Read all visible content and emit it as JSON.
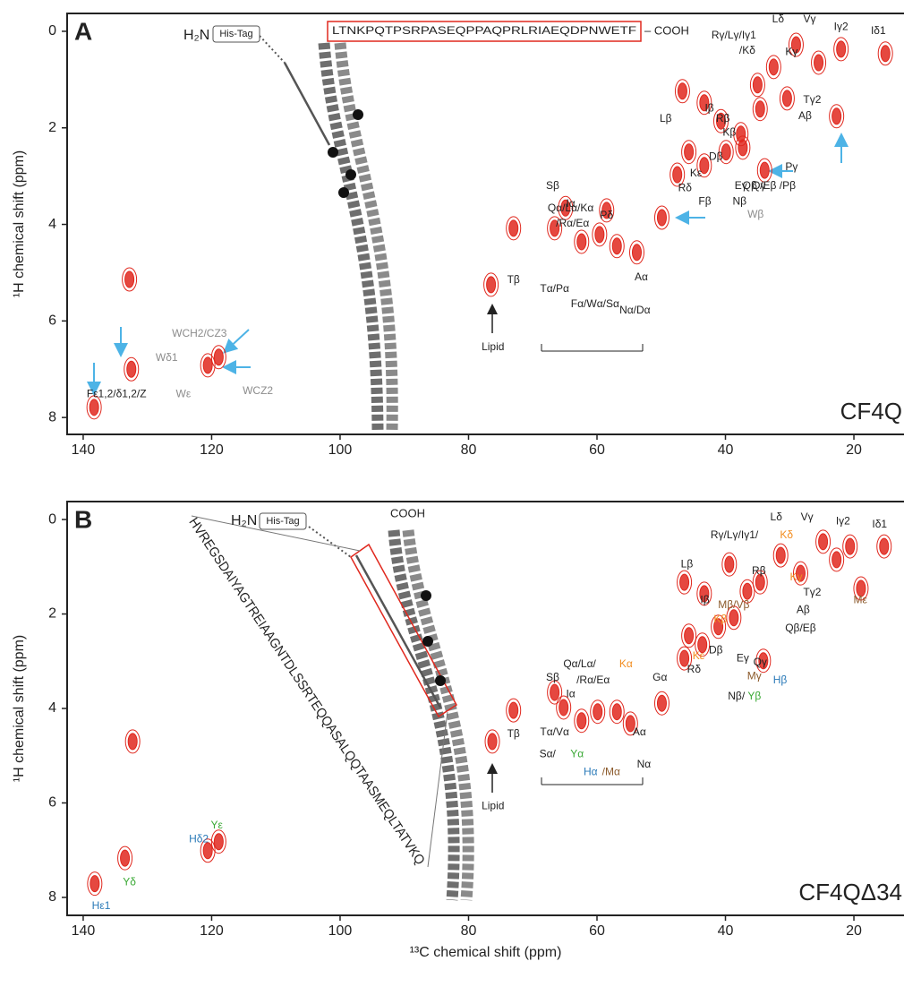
{
  "chart_data": [
    {
      "type": "scatter",
      "panel": "A",
      "construct": "CF4Q",
      "ylabel": "¹H chemical shift (ppm)",
      "xlim": [
        142.5,
        12.2
      ],
      "ylim": [
        -0.37,
        8.35
      ],
      "xticks": [
        140,
        120,
        100,
        80,
        60,
        40,
        20
      ],
      "yticks": [
        0,
        2,
        4,
        6,
        8
      ],
      "structure": {
        "n_term": "H₂N",
        "tag": "His-Tag",
        "sequence": "LTNKPQTPSRPASEQPPAQPRLRIAEQDPNWETF",
        "c_term": "– COOH"
      },
      "series": [
        {
          "color": "#e0281e",
          "x": [
            132.8,
            132.5,
            138.3,
            120.6,
            118.9,
            76.5,
            73.0,
            49.9,
            46.7,
            43.3,
            45.7,
            47.5,
            43.3,
            39.9,
            37.6,
            34.6,
            33.9,
            22.7,
            15.1,
            22.0,
            29.0,
            32.5,
            25.5,
            35.0,
            66.6,
            64.9,
            62.4,
            59.6,
            56.9,
            53.8,
            58.5,
            30.4,
            40.7,
            37.3
          ],
          "values": [
            5.14,
            7.0,
            7.79,
            6.92,
            6.75,
            5.25,
            4.08,
            3.86,
            1.24,
            1.48,
            2.5,
            2.97,
            2.78,
            2.5,
            2.13,
            1.61,
            2.88,
            1.76,
            0.46,
            0.37,
            0.28,
            0.74,
            0.65,
            1.11,
            4.08,
            3.66,
            4.36,
            4.21,
            4.45,
            4.58,
            3.71,
            1.39,
            1.86,
            2.41
          ]
        }
      ],
      "annotations": [
        {
          "text": "Lδ",
          "x": 31.8,
          "y": -0.24
        },
        {
          "text": "Vγ",
          "x": 26.9,
          "y": -0.24
        },
        {
          "text": "Iγ2",
          "x": 22.0,
          "y": -0.09
        },
        {
          "text": "Iδ1",
          "x": 16.2,
          "y": 0.0
        },
        {
          "text": "Rγ/Lγ/Iγ1",
          "x": 38.7,
          "y": 0.09
        },
        {
          "text": "/Kδ",
          "x": 36.6,
          "y": 0.41
        },
        {
          "text": "Kγ",
          "x": 29.7,
          "y": 0.43
        },
        {
          "text": "Lβ",
          "x": 49.3,
          "y": 1.82
        },
        {
          "text": "Iβ",
          "x": 42.5,
          "y": 1.6
        },
        {
          "text": "Rβ",
          "x": 40.4,
          "y": 1.82
        },
        {
          "text": "Kβ",
          "x": 39.4,
          "y": 2.1
        },
        {
          "text": "Tγ2",
          "x": 26.5,
          "y": 1.43
        },
        {
          "text": "Aβ",
          "x": 27.6,
          "y": 1.76
        },
        {
          "text": "Dβ",
          "x": 41.5,
          "y": 2.6
        },
        {
          "text": "Kε",
          "x": 44.6,
          "y": 2.95
        },
        {
          "text": "Rδ",
          "x": 46.3,
          "y": 3.25
        },
        {
          "text": "Eγ",
          "x": 37.6,
          "y": 3.21
        },
        {
          "text": "Qγ",
          "x": 34.8,
          "y": 3.21
        },
        {
          "text": "Fβ",
          "x": 43.2,
          "y": 3.53
        },
        {
          "text": "Nβ",
          "x": 37.8,
          "y": 3.53
        },
        {
          "text": "Pγ",
          "x": 29.7,
          "y": 2.82
        },
        {
          "text": "Qβ /Eβ /Pβ",
          "x": 33.2,
          "y": 3.21
        },
        {
          "text": "Wβ",
          "x": 35.3,
          "y": 3.8,
          "color": "#8c8c8c"
        },
        {
          "text": "Pδ",
          "x": 58.5,
          "y": 3.82
        },
        {
          "text": "Qα/Lα/Kα",
          "x": 64.1,
          "y": 3.67
        },
        {
          "text": "/Rα/Eα",
          "x": 63.8,
          "y": 3.99
        },
        {
          "text": "Sβ",
          "x": 66.9,
          "y": 3.21
        },
        {
          "text": "Iα",
          "x": 64.1,
          "y": 3.58
        },
        {
          "text": "Aα",
          "x": 53.1,
          "y": 5.1
        },
        {
          "text": "Tα/Pα",
          "x": 66.6,
          "y": 5.34
        },
        {
          "text": "Fα/Wα/Sα",
          "x": 60.3,
          "y": 5.66
        },
        {
          "text": "Nα/Dα",
          "x": 54.1,
          "y": 5.79
        },
        {
          "text": "Tβ",
          "x": 73.0,
          "y": 5.16
        },
        {
          "text": "Lipid",
          "x": 76.2,
          "y": 6.55
        },
        {
          "text": "WCH2/CZ3",
          "x": 121.9,
          "y": 6.27,
          "color": "#8c8c8c"
        },
        {
          "text": "Wδ1",
          "x": 127.0,
          "y": 6.77,
          "color": "#8c8c8c"
        },
        {
          "text": "Wε",
          "x": 124.4,
          "y": 7.52,
          "color": "#8c8c8c"
        },
        {
          "text": "WCZ2",
          "x": 112.8,
          "y": 7.46,
          "color": "#8c8c8c"
        },
        {
          "text": "Fε1,2/δ1,2/Z",
          "x": 134.8,
          "y": 7.52
        }
      ]
    },
    {
      "type": "scatter",
      "panel": "B",
      "construct": "CF4QΔ34",
      "xlabel": "¹³C chemical shift (ppm)",
      "ylabel": "¹H chemical shift (ppm)",
      "xlim": [
        142.5,
        12.2
      ],
      "ylim": [
        -0.38,
        8.38
      ],
      "xticks": [
        140,
        120,
        100,
        80,
        60,
        40,
        20
      ],
      "yticks": [
        0,
        2,
        4,
        6,
        8
      ],
      "structure": {
        "n_term": "H₂N",
        "tag": "His-Tag",
        "sequence": "HVREGSDAIYAGTREIAAGNTDLSSRTEQQASALQQTAASMEQLTATVKQ",
        "c_term": "COOH"
      },
      "series": [
        {
          "color": "#e0281e",
          "x": [
            138.2,
            133.5,
            132.3,
            120.6,
            118.9,
            76.3,
            73.0,
            66.6,
            65.2,
            62.4,
            59.9,
            56.9,
            54.8,
            49.9,
            46.4,
            45.7,
            46.4,
            43.3,
            39.4,
            43.6,
            41.1,
            38.7,
            36.6,
            34.6,
            34.1,
            31.4,
            28.3,
            24.8,
            22.7,
            20.6,
            18.9,
            15.3
          ],
          "values": [
            7.71,
            7.17,
            4.7,
            7.01,
            6.82,
            4.7,
            4.04,
            3.66,
            3.98,
            4.26,
            4.07,
            4.07,
            4.32,
            3.89,
            2.94,
            2.46,
            1.33,
            1.57,
            0.95,
            2.65,
            2.27,
            2.08,
            1.52,
            1.33,
            2.99,
            0.76,
            1.14,
            0.47,
            0.85,
            0.57,
            1.46,
            0.57
          ]
        }
      ],
      "annotations": [
        {
          "text": "Lδ",
          "x": 32.1,
          "y": -0.04
        },
        {
          "text": "Vγ",
          "x": 27.3,
          "y": -0.04
        },
        {
          "text": "Iγ2",
          "x": 21.7,
          "y": 0.04
        },
        {
          "text": "Iδ1",
          "x": 16.0,
          "y": 0.11
        },
        {
          "text": "Rγ/Lγ/Iγ1/",
          "x": 38.6,
          "y": 0.34
        },
        {
          "text": "Kδ",
          "x": 30.5,
          "y": 0.34,
          "color": "#f28c1e"
        },
        {
          "text": "Lβ",
          "x": 46.0,
          "y": 0.95
        },
        {
          "text": "Iβ",
          "x": 43.2,
          "y": 1.71
        },
        {
          "text": "Mβ/Vβ",
          "x": 38.7,
          "y": 1.82,
          "color": "#8b5a2b"
        },
        {
          "text": "Kβ",
          "x": 40.8,
          "y": 2.12,
          "color": "#f28c1e"
        },
        {
          "text": "Rβ",
          "x": 34.8,
          "y": 1.1
        },
        {
          "text": "Kγ",
          "x": 29.0,
          "y": 1.23,
          "color": "#f28c1e"
        },
        {
          "text": "Tγ2",
          "x": 26.5,
          "y": 1.55
        },
        {
          "text": "Aβ",
          "x": 27.9,
          "y": 1.92
        },
        {
          "text": "Mε",
          "x": 19.0,
          "y": 1.71,
          "color": "#8b5a2b"
        },
        {
          "text": "Qβ/Eβ",
          "x": 28.3,
          "y": 2.31
        },
        {
          "text": "Kε",
          "x": 44.2,
          "y": 2.9,
          "color": "#f28c1e"
        },
        {
          "text": "Dβ",
          "x": 41.5,
          "y": 2.77
        },
        {
          "text": "Rδ",
          "x": 44.9,
          "y": 3.18
        },
        {
          "text": "Eγ",
          "x": 37.3,
          "y": 2.94
        },
        {
          "text": "Qγ",
          "x": 34.6,
          "y": 3.03
        },
        {
          "text": "Mγ",
          "x": 35.5,
          "y": 3.32,
          "color": "#8b5a2b"
        },
        {
          "text": "Nβ/",
          "x": 38.3,
          "y": 3.75
        },
        {
          "text": "Yβ",
          "x": 35.5,
          "y": 3.75,
          "color": "#3aa935"
        },
        {
          "text": "Hβ",
          "x": 31.5,
          "y": 3.41,
          "color": "#2a7ab8"
        },
        {
          "text": "Gα",
          "x": 50.2,
          "y": 3.35
        },
        {
          "text": "Tβ",
          "x": 73.0,
          "y": 4.55
        },
        {
          "text": "Sβ",
          "x": 66.9,
          "y": 3.35
        },
        {
          "text": "Iα",
          "x": 64.1,
          "y": 3.7
        },
        {
          "text": "Qα/Lα/",
          "x": 62.7,
          "y": 3.07
        },
        {
          "text": "Kα",
          "x": 55.5,
          "y": 3.07,
          "color": "#f28c1e"
        },
        {
          "text": "/Rα/Eα",
          "x": 60.6,
          "y": 3.41
        },
        {
          "text": "Aα",
          "x": 53.4,
          "y": 4.51
        },
        {
          "text": "Tα/Vα",
          "x": 66.6,
          "y": 4.51
        },
        {
          "text": "Sα/",
          "x": 67.7,
          "y": 4.97
        },
        {
          "text": "Yα",
          "x": 63.1,
          "y": 4.97,
          "color": "#3aa935"
        },
        {
          "text": "Hα",
          "x": 61.0,
          "y": 5.35,
          "color": "#2a7ab8"
        },
        {
          "text": "/Mα",
          "x": 57.8,
          "y": 5.35,
          "color": "#8b5a2b"
        },
        {
          "text": "Nα",
          "x": 52.7,
          "y": 5.19
        },
        {
          "text": "Lipid",
          "x": 76.2,
          "y": 6.07
        },
        {
          "text": "Hδ2",
          "x": 122.0,
          "y": 6.77,
          "color": "#2a7ab8"
        },
        {
          "text": "Yε",
          "x": 119.2,
          "y": 6.48,
          "color": "#3aa935"
        },
        {
          "text": "Yδ",
          "x": 132.8,
          "y": 7.68,
          "color": "#3aa935"
        },
        {
          "text": "Hε1",
          "x": 137.2,
          "y": 8.19,
          "color": "#2a7ab8"
        }
      ]
    }
  ]
}
